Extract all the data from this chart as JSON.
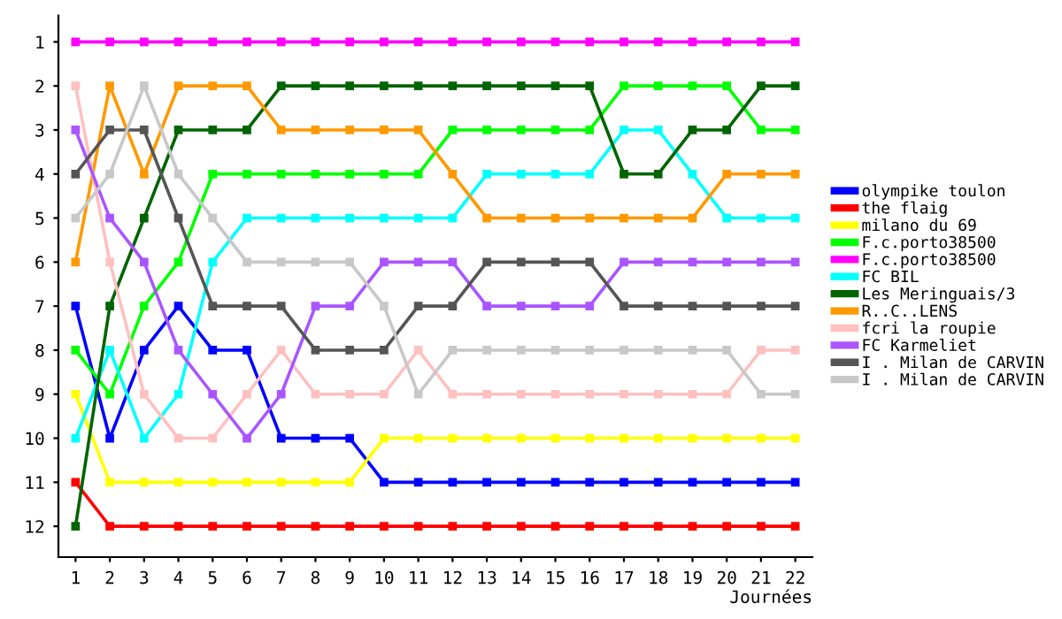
{
  "chart_data": {
    "type": "line",
    "xlabel": "Journées",
    "x": [
      1,
      2,
      3,
      4,
      5,
      6,
      7,
      8,
      9,
      10,
      11,
      12,
      13,
      14,
      15,
      16,
      17,
      18,
      19,
      20,
      21,
      22
    ],
    "xlim": [
      0.5,
      22.5
    ],
    "xticks": [
      1,
      2,
      3,
      4,
      5,
      6,
      7,
      8,
      9,
      10,
      11,
      12,
      13,
      14,
      15,
      16,
      17,
      18,
      19,
      20,
      21,
      22
    ],
    "ylim": [
      12.7,
      0.4
    ],
    "yticks": [
      1,
      2,
      3,
      4,
      5,
      6,
      7,
      8,
      9,
      10,
      11,
      12
    ],
    "grid": false,
    "legend": "right",
    "marker": "square",
    "line_style": "solid",
    "series": [
      {
        "name": "olympike toulon",
        "color": "#0000ff",
        "values": [
          7,
          10,
          8,
          7,
          8,
          8,
          10,
          10,
          10,
          11,
          11,
          11,
          11,
          11,
          11,
          11,
          11,
          11,
          11,
          11,
          11,
          11
        ]
      },
      {
        "name": "the flaig",
        "color": "#ff0000",
        "values": [
          11,
          12,
          12,
          12,
          12,
          12,
          12,
          12,
          12,
          12,
          12,
          12,
          12,
          12,
          12,
          12,
          12,
          12,
          12,
          12,
          12,
          12
        ]
      },
      {
        "name": "milano du 69",
        "color": "#ffff00",
        "values": [
          9,
          11,
          11,
          11,
          11,
          11,
          11,
          11,
          11,
          10,
          10,
          10,
          10,
          10,
          10,
          10,
          10,
          10,
          10,
          10,
          10,
          10
        ]
      },
      {
        "name": "F.c.porto38500",
        "color": "#00ff00",
        "values": [
          8,
          9,
          7,
          6,
          4,
          4,
          4,
          4,
          4,
          4,
          4,
          3,
          3,
          3,
          3,
          3,
          2,
          2,
          2,
          2,
          3,
          3
        ]
      },
      {
        "name": "F.c.porto38500",
        "color": "#ff00ff",
        "values": [
          1,
          1,
          1,
          1,
          1,
          1,
          1,
          1,
          1,
          1,
          1,
          1,
          1,
          1,
          1,
          1,
          1,
          1,
          1,
          1,
          1,
          1
        ]
      },
      {
        "name": "FC BIL",
        "color": "#00ffff",
        "values": [
          10,
          8,
          10,
          9,
          6,
          5,
          5,
          5,
          5,
          5,
          5,
          5,
          4,
          4,
          4,
          4,
          3,
          3,
          4,
          5,
          5,
          5
        ]
      },
      {
        "name": "Les Meringuais/3",
        "color": "#006400",
        "values": [
          12,
          7,
          5,
          3,
          3,
          3,
          2,
          2,
          2,
          2,
          2,
          2,
          2,
          2,
          2,
          2,
          4,
          4,
          3,
          3,
          2,
          2
        ]
      },
      {
        "name": "R..C..LENS",
        "color": "#ff9900",
        "values": [
          6,
          2,
          4,
          2,
          2,
          2,
          3,
          3,
          3,
          3,
          3,
          4,
          5,
          5,
          5,
          5,
          5,
          5,
          5,
          4,
          4,
          4
        ]
      },
      {
        "name": "fcri la roupie",
        "color": "#ffc0c0",
        "values": [
          2,
          6,
          9,
          10,
          10,
          9,
          8,
          9,
          9,
          9,
          8,
          9,
          9,
          9,
          9,
          9,
          9,
          9,
          9,
          9,
          8,
          8
        ]
      },
      {
        "name": "FC Karmeliet",
        "color": "#aa55ff",
        "values": [
          3,
          5,
          6,
          8,
          9,
          10,
          9,
          7,
          7,
          6,
          6,
          6,
          7,
          7,
          7,
          7,
          6,
          6,
          6,
          6,
          6,
          6
        ]
      },
      {
        "name": "I . Milan de CARVIN",
        "color": "#555555",
        "values": [
          4,
          3,
          3,
          5,
          7,
          7,
          7,
          8,
          8,
          8,
          7,
          7,
          6,
          6,
          6,
          6,
          7,
          7,
          7,
          7,
          7,
          7
        ]
      },
      {
        "name": "I . Milan de CARVIN",
        "color": "#c8c8c8",
        "values": [
          5,
          4,
          2,
          4,
          5,
          6,
          6,
          6,
          6,
          7,
          9,
          8,
          8,
          8,
          8,
          8,
          8,
          8,
          8,
          8,
          9,
          9
        ]
      }
    ]
  }
}
